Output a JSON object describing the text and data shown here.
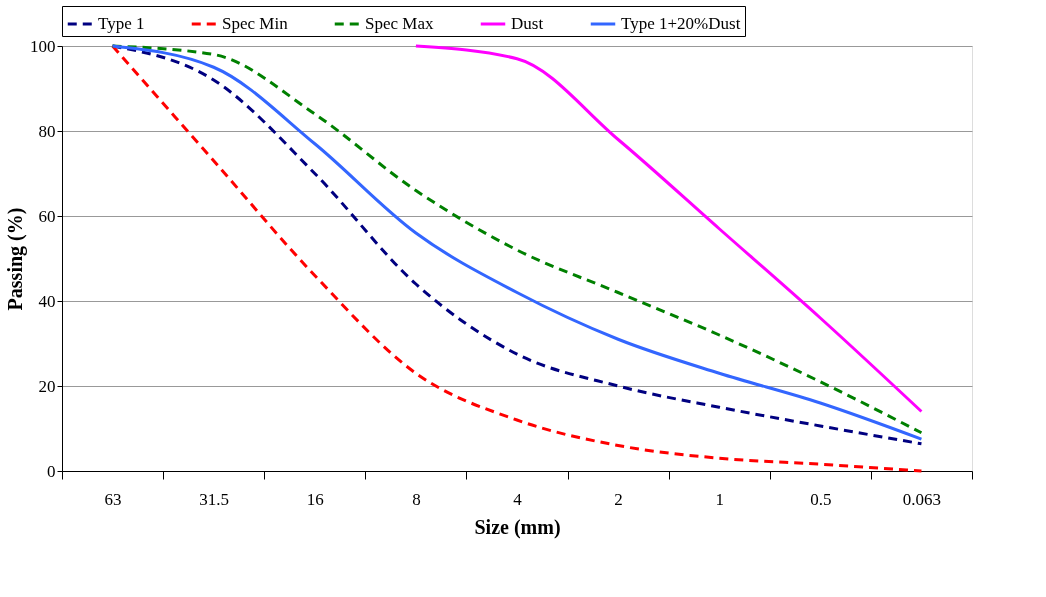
{
  "chart_data": {
    "type": "line",
    "xlabel": "Size (mm)",
    "ylabel": "Passing (%)",
    "categories": [
      "63",
      "31.5",
      "16",
      "8",
      "4",
      "2",
      "1",
      "0.5",
      "0.063"
    ],
    "series": [
      {
        "name": "Type 1",
        "color": "#000080",
        "line_style": "dashed",
        "values": [
          100,
          92,
          70,
          44,
          27.5,
          20,
          15,
          10.6,
          6.4
        ]
      },
      {
        "name": "Spec Min",
        "color": "#ff0000",
        "line_style": "dashed",
        "values": [
          100,
          73,
          46,
          23,
          12,
          6,
          3,
          1.6,
          0
        ]
      },
      {
        "name": "Spec Max",
        "color": "#008000",
        "line_style": "dashed",
        "values": [
          100,
          98,
          84,
          66,
          52,
          42,
          32,
          21,
          9
        ]
      },
      {
        "name": "Dust",
        "color": "#ff00ff",
        "line_style": "solid",
        "values": [
          null,
          null,
          null,
          100,
          97,
          78,
          57,
          36,
          14
        ]
      },
      {
        "name": "Type 1+20%Dust",
        "color": "#3366ff",
        "line_style": "solid",
        "values": [
          100,
          95,
          77,
          56,
          42,
          31,
          23,
          16,
          7.5
        ]
      }
    ],
    "ylim": [
      0,
      100
    ],
    "yticks": [
      0,
      20,
      40,
      60,
      80,
      100
    ],
    "grid": "y",
    "legend": "top",
    "marker": "none"
  }
}
